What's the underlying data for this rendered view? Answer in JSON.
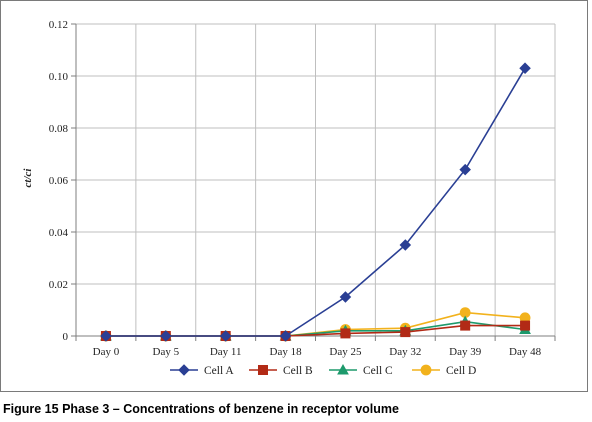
{
  "caption": {
    "number": "Figure 15",
    "text": "Phase 3 – Concentrations of benzene in receptor volume"
  },
  "chart_data": {
    "type": "line",
    "title": "",
    "xlabel": "",
    "ylabel": "ct/ci",
    "categories": [
      "Day 0",
      "Day 5",
      "Day 11",
      "Day 18",
      "Day 25",
      "Day 32",
      "Day 39",
      "Day 48"
    ],
    "ylim": [
      0,
      0.12
    ],
    "yticks": [
      0,
      0.02,
      0.04,
      0.06,
      0.08,
      0.1,
      0.12
    ],
    "ytick_labels": [
      "0",
      "0.02",
      "0.04",
      "0.06",
      "0.08",
      "0.10",
      "0.12"
    ],
    "grid": true,
    "legend_position": "bottom",
    "series": [
      {
        "name": "Cell A",
        "color": "#2a3f94",
        "marker": "diamond",
        "values": [
          0,
          0,
          0,
          0,
          0.015,
          0.035,
          0.064,
          0.103
        ]
      },
      {
        "name": "Cell B",
        "color": "#b22a16",
        "marker": "square",
        "values": [
          0,
          0,
          0,
          0,
          0.001,
          0.0015,
          0.004,
          0.004
        ]
      },
      {
        "name": "Cell C",
        "color": "#1d9a6c",
        "marker": "triangle",
        "values": [
          0,
          0,
          0,
          0,
          0.002,
          0.002,
          0.0055,
          0.0025
        ]
      },
      {
        "name": "Cell D",
        "color": "#f2b21c",
        "marker": "circle",
        "values": [
          0,
          0,
          0,
          0,
          0.0025,
          0.003,
          0.009,
          0.007
        ]
      }
    ]
  }
}
